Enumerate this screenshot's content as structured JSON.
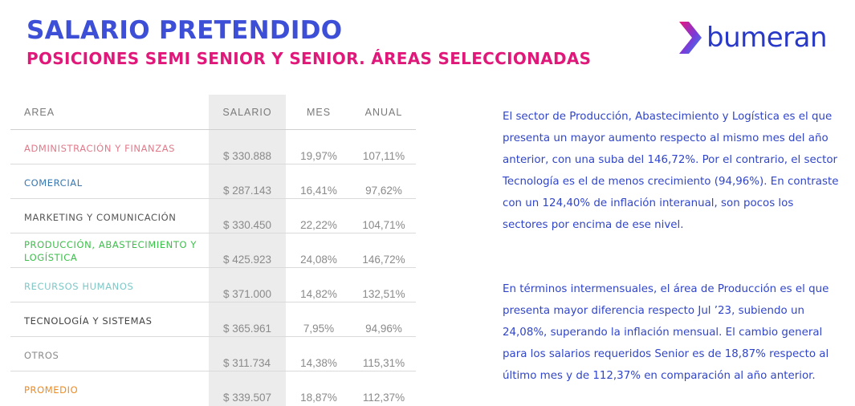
{
  "header": {
    "title": "SALARIO PRETENDIDO",
    "subtitle": "POSICIONES SEMI SENIOR Y SENIOR. ÁREAS SELECCIONADAS"
  },
  "logo": {
    "text": "bumeran",
    "icon": "bumeran-chevron-icon"
  },
  "table": {
    "headers": {
      "area": "AREA",
      "salario": "SALARIO",
      "mes": "MES",
      "anual": "ANUAL"
    },
    "rows": [
      {
        "area": "ADMINISTRACIÓN Y FINANZAS",
        "salario": "$ 330.888",
        "mes": "19,97%",
        "anual": "107,11%",
        "color": "#e07a8a"
      },
      {
        "area": "COMERCIAL",
        "salario": "$ 287.143",
        "mes": "16,41%",
        "anual": "97,62%",
        "color": "#3a78b0"
      },
      {
        "area": "MARKETING Y COMUNICACIÓN",
        "salario": "$ 330.450",
        "mes": "22,22%",
        "anual": "104,71%",
        "color": "#555555"
      },
      {
        "area": "PRODUCCIÓN, ABASTECIMIENTO Y LOGÍSTICA",
        "salario": "$ 425.923",
        "mes": "24,08%",
        "anual": "146,72%",
        "color": "#3cbf4a"
      },
      {
        "area": "RECURSOS HUMANOS",
        "salario": "$ 371.000",
        "mes": "14,82%",
        "anual": "132,51%",
        "color": "#7fc7c7"
      },
      {
        "area": "TECNOLOGÍA Y SISTEMAS",
        "salario": "$ 365.961",
        "mes": "7,95%",
        "anual": "94,96%",
        "color": "#444444"
      },
      {
        "area": "OTROS",
        "salario": "$ 311.734",
        "mes": "14,38%",
        "anual": "115,31%",
        "color": "#8a8a8a"
      },
      {
        "area": "PROMEDIO",
        "salario": "$ 339.507",
        "mes": "18,87%",
        "anual": "112,37%",
        "color": "#f08a1c"
      }
    ]
  },
  "paragraphs": [
    "El sector de Producción, Abastecimiento y Logística es el que presenta un mayor aumento respecto al mismo mes del año anterior, con una suba del 146,72%. Por el contrario, el sector Tecnología es el de menos crecimiento (94,96%). En contraste con un 124,40% de inflación interanual, son pocos los sectores por encima de ese nivel.",
    "En términos intermensuales, el área de Producción es el que presenta mayor diferencia respecto Jul ’23, subiendo un 24,08%, superando la inflación mensual. El cambio general para los salarios requeridos Senior es de 18,87% respecto al último mes y de 112,37% en comparación al año anterior."
  ],
  "colors": {
    "title": "#3d4fd6",
    "subtitle": "#e0187a",
    "body_text": "#3045c8"
  }
}
